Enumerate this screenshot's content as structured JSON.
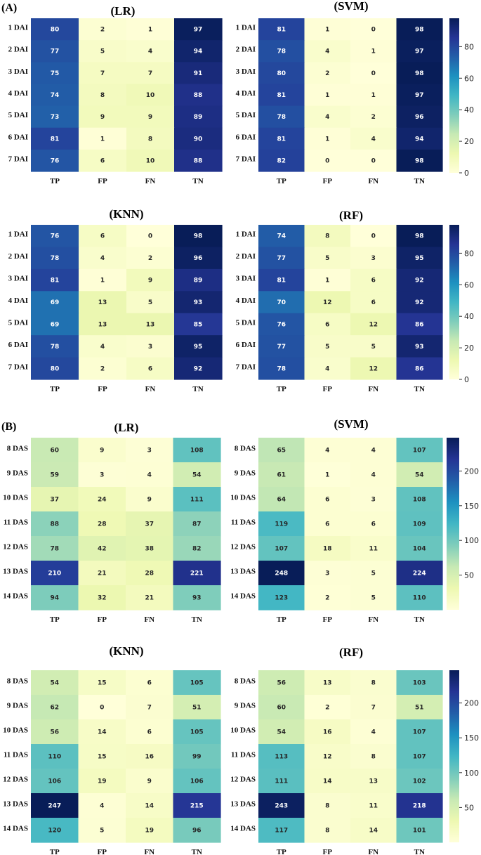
{
  "panels": [
    {
      "label": "(A)"
    },
    {
      "label": "(B)"
    }
  ],
  "chart_data": [
    {
      "type": "heatmap",
      "panel": "A",
      "title": "(LR)",
      "columns": [
        "TP",
        "FP",
        "FN",
        "TN"
      ],
      "rows": [
        "1 DAI",
        "2 DAI",
        "3 DAI",
        "4 DAI",
        "5 DAI",
        "6 DAI",
        "7 DAI"
      ],
      "values": [
        [
          80,
          2,
          1,
          97
        ],
        [
          77,
          5,
          4,
          94
        ],
        [
          75,
          7,
          7,
          91
        ],
        [
          74,
          8,
          10,
          88
        ],
        [
          73,
          9,
          9,
          89
        ],
        [
          81,
          1,
          8,
          90
        ],
        [
          76,
          6,
          10,
          88
        ]
      ],
      "vmin": 0,
      "vmax": 98,
      "colormap": "YlGnBu"
    },
    {
      "type": "heatmap",
      "panel": "A",
      "title": "(SVM)",
      "columns": [
        "TP",
        "FP",
        "FN",
        "TN"
      ],
      "rows": [
        "1 DAI",
        "2 DAI",
        "3 DAI",
        "4 DAI",
        "5 DAI",
        "6 DAI",
        "7 DAI"
      ],
      "values": [
        [
          81,
          1,
          0,
          98
        ],
        [
          78,
          4,
          1,
          97
        ],
        [
          80,
          2,
          0,
          98
        ],
        [
          81,
          1,
          1,
          97
        ],
        [
          78,
          4,
          2,
          96
        ],
        [
          81,
          1,
          4,
          94
        ],
        [
          82,
          0,
          0,
          98
        ]
      ],
      "vmin": 0,
      "vmax": 98,
      "colormap": "YlGnBu",
      "colorbar": {
        "ticks": [
          0,
          20,
          40,
          60,
          80
        ]
      }
    },
    {
      "type": "heatmap",
      "panel": "A",
      "title": "(KNN)",
      "columns": [
        "TP",
        "FP",
        "FN",
        "TN"
      ],
      "rows": [
        "1 DAI",
        "2 DAI",
        "3 DAI",
        "4 DAI",
        "5 DAI",
        "6 DAI",
        "7 DAI"
      ],
      "values": [
        [
          76,
          6,
          0,
          98
        ],
        [
          78,
          4,
          2,
          96
        ],
        [
          81,
          1,
          9,
          89
        ],
        [
          69,
          13,
          5,
          93
        ],
        [
          69,
          13,
          13,
          85
        ],
        [
          78,
          4,
          3,
          95
        ],
        [
          80,
          2,
          6,
          92
        ]
      ],
      "vmin": 0,
      "vmax": 98,
      "colormap": "YlGnBu"
    },
    {
      "type": "heatmap",
      "panel": "A",
      "title": "(RF)",
      "columns": [
        "TP",
        "FP",
        "FN",
        "TN"
      ],
      "rows": [
        "1 DAI",
        "2 DAI",
        "3 DAI",
        "4 DAI",
        "5 DAI",
        "6 DAI",
        "7 DAI"
      ],
      "values": [
        [
          74,
          8,
          0,
          98
        ],
        [
          77,
          5,
          3,
          95
        ],
        [
          81,
          1,
          6,
          92
        ],
        [
          70,
          12,
          6,
          92
        ],
        [
          76,
          6,
          12,
          86
        ],
        [
          77,
          5,
          5,
          93
        ],
        [
          78,
          4,
          12,
          86
        ]
      ],
      "vmin": 0,
      "vmax": 98,
      "colormap": "YlGnBu",
      "colorbar": {
        "ticks": [
          0,
          20,
          40,
          60,
          80
        ]
      }
    },
    {
      "type": "heatmap",
      "panel": "B",
      "title": "(LR)",
      "columns": [
        "TP",
        "FP",
        "FN",
        "TN"
      ],
      "rows": [
        "8 DAS",
        "9 DAS",
        "10 DAS",
        "11 DAS",
        "12 DAS",
        "13 DAS",
        "14 DAS"
      ],
      "values": [
        [
          60,
          9,
          3,
          108
        ],
        [
          59,
          3,
          4,
          54
        ],
        [
          37,
          24,
          9,
          111
        ],
        [
          88,
          28,
          37,
          87
        ],
        [
          78,
          42,
          38,
          82
        ],
        [
          210,
          21,
          28,
          221
        ],
        [
          94,
          32,
          21,
          93
        ]
      ],
      "vmin": 0,
      "vmax": 248,
      "colormap": "YlGnBu"
    },
    {
      "type": "heatmap",
      "panel": "B",
      "title": "(SVM)",
      "columns": [
        "TP",
        "FP",
        "FN",
        "TN"
      ],
      "rows": [
        "8 DAS",
        "9 DAS",
        "10 DAS",
        "11 DAS",
        "12 DAS",
        "13 DAS",
        "14 DAS"
      ],
      "values": [
        [
          65,
          4,
          4,
          107
        ],
        [
          61,
          1,
          4,
          54
        ],
        [
          64,
          6,
          3,
          108
        ],
        [
          119,
          6,
          6,
          109
        ],
        [
          107,
          18,
          11,
          104
        ],
        [
          248,
          3,
          5,
          224
        ],
        [
          123,
          2,
          5,
          110
        ]
      ],
      "vmin": 0,
      "vmax": 248,
      "colormap": "YlGnBu",
      "colorbar": {
        "ticks": [
          50,
          100,
          150,
          200
        ]
      }
    },
    {
      "type": "heatmap",
      "panel": "B",
      "title": "(KNN)",
      "columns": [
        "TP",
        "FP",
        "FN",
        "TN"
      ],
      "rows": [
        "8 DAS",
        "9 DAS",
        "10 DAS",
        "11 DAS",
        "12 DAS",
        "13 DAS",
        "14 DAS"
      ],
      "values": [
        [
          54,
          15,
          6,
          105
        ],
        [
          62,
          0,
          7,
          51
        ],
        [
          56,
          14,
          6,
          105
        ],
        [
          110,
          15,
          16,
          99
        ],
        [
          106,
          19,
          9,
          106
        ],
        [
          247,
          4,
          14,
          215
        ],
        [
          120,
          5,
          19,
          96
        ]
      ],
      "vmin": 0,
      "vmax": 247,
      "colormap": "YlGnBu"
    },
    {
      "type": "heatmap",
      "panel": "B",
      "title": "(RF)",
      "columns": [
        "TP",
        "FP",
        "FN",
        "TN"
      ],
      "rows": [
        "8 DAS",
        "9 DAS",
        "10 DAS",
        "11 DAS",
        "12 DAS",
        "13 DAS",
        "14 DAS"
      ],
      "values": [
        [
          56,
          13,
          8,
          103
        ],
        [
          60,
          2,
          7,
          51
        ],
        [
          54,
          16,
          4,
          107
        ],
        [
          113,
          12,
          8,
          107
        ],
        [
          111,
          14,
          13,
          102
        ],
        [
          243,
          8,
          11,
          218
        ],
        [
          117,
          8,
          14,
          101
        ]
      ],
      "vmin": 0,
      "vmax": 247,
      "colormap": "YlGnBu",
      "colorbar": {
        "ticks": [
          50,
          100,
          150,
          200
        ]
      }
    }
  ]
}
